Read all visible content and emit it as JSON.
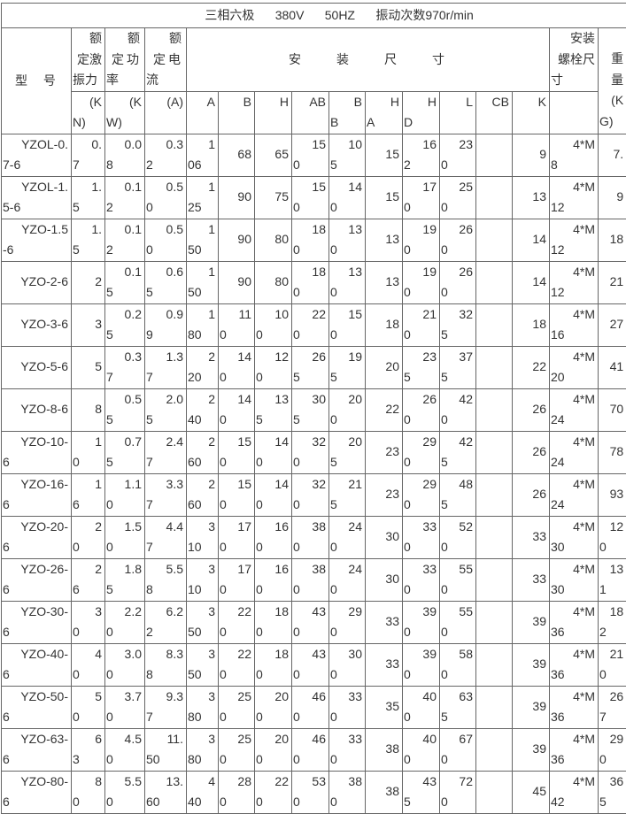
{
  "title": "三相六极      380V      50HZ      振动次数970r/min",
  "headers": {
    "model": "型 号",
    "force": "额定激振力",
    "power": "额定功率",
    "current": "额定电流",
    "dimensions": "安装尺寸",
    "bolt": "安装螺栓尺寸",
    "weight": "重量(KG)",
    "units": [
      "(KN)",
      "(KW)",
      "(A)",
      "A",
      "B",
      "H",
      "AB",
      "BB",
      "HA",
      "HD",
      "L",
      "CB",
      "K"
    ]
  },
  "rows": [
    [
      "YZOL-0.7-6",
      "0.7",
      "0.08",
      "0.32",
      "106",
      "68",
      "65",
      "150",
      "105",
      "15",
      "162",
      "230",
      "",
      "9",
      "4*M8",
      "7."
    ],
    [
      "YZOL-1.5-6",
      "1.5",
      "0.12",
      "0.50",
      "125",
      "90",
      "75",
      "150",
      "140",
      "15",
      "170",
      "250",
      "",
      "13",
      "4*M12",
      "9"
    ],
    [
      "YZO-1.5-6",
      "1.5",
      "0.12",
      "0.50",
      "150",
      "90",
      "80",
      "180",
      "130",
      "13",
      "190",
      "260",
      "",
      "14",
      "4*M12",
      "18"
    ],
    [
      "YZO-2-6",
      "2",
      "0.15",
      "0.65",
      "150",
      "90",
      "80",
      "180",
      "130",
      "13",
      "190",
      "260",
      "",
      "14",
      "4*M12",
      "21"
    ],
    [
      "YZO-3-6",
      "3",
      "0.25",
      "0.99",
      "180",
      "110",
      "100",
      "220",
      "150",
      "18",
      "210",
      "325",
      "",
      "18",
      "4*M16",
      "27"
    ],
    [
      "YZO-5-6",
      "5",
      "0.37",
      "1.37",
      "220",
      "140",
      "120",
      "265",
      "195",
      "20",
      "235",
      "375",
      "",
      "22",
      "4*M20",
      "41"
    ],
    [
      "YZO-8-6",
      "8",
      "0.55",
      "2.05",
      "240",
      "140",
      "135",
      "305",
      "200",
      "22",
      "260",
      "420",
      "",
      "26",
      "4*M24",
      "70"
    ],
    [
      "YZO-10-6",
      "10",
      "0.75",
      "2.47",
      "260",
      "150",
      "140",
      "320",
      "205",
      "23",
      "290",
      "425",
      "",
      "26",
      "4*M24",
      "78"
    ],
    [
      "YZO-16-6",
      "16",
      "1.10",
      "3.37",
      "260",
      "150",
      "140",
      "320",
      "215",
      "23",
      "290",
      "485",
      "",
      "26",
      "4*M24",
      "93"
    ],
    [
      "YZO-20-6",
      "20",
      "1.50",
      "4.47",
      "310",
      "170",
      "160",
      "380",
      "240",
      "30",
      "330",
      "520",
      "",
      "33",
      "4*M30",
      "120"
    ],
    [
      "YZO-26-6",
      "26",
      "1.85",
      "5.58",
      "310",
      "170",
      "160",
      "380",
      "240",
      "30",
      "330",
      "550",
      "",
      "33",
      "4*M30",
      "131"
    ],
    [
      "YZO-30-6",
      "30",
      "2.20",
      "6.22",
      "350",
      "220",
      "180",
      "430",
      "290",
      "33",
      "390",
      "550",
      "",
      "39",
      "4*M36",
      "182"
    ],
    [
      "YZO-40-6",
      "40",
      "3.00",
      "8.38",
      "350",
      "220",
      "180",
      "430",
      "300",
      "33",
      "390",
      "580",
      "",
      "39",
      "4*M36",
      "210"
    ],
    [
      "YZO-50-6",
      "50",
      "3.70",
      "9.37",
      "380",
      "250",
      "200",
      "460",
      "330",
      "35",
      "400",
      "635",
      "",
      "39",
      "4*M36",
      "267"
    ],
    [
      "YZO-63-6",
      "63",
      "4.50",
      "11.50",
      "380",
      "250",
      "200",
      "460",
      "330",
      "38",
      "400",
      "670",
      "",
      "39",
      "4*M36",
      "290"
    ],
    [
      "YZO-80-6",
      "80",
      "5.50",
      "13.60",
      "440",
      "280",
      "220",
      "530",
      "380",
      "38",
      "435",
      "720",
      "",
      "45",
      "4*M42",
      "365"
    ]
  ]
}
